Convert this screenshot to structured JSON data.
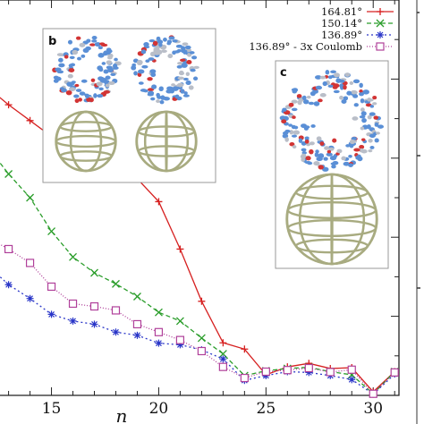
{
  "chart_data": {
    "type": "line",
    "xlabel": "n",
    "ylabel": "",
    "xlim": [
      12.6,
      31.2
    ],
    "ylim": [
      0,
      1
    ],
    "x_ticks": [
      15,
      20,
      25,
      30
    ],
    "grid": false,
    "legend_position": "top-right",
    "series": [
      {
        "name": "164.81°",
        "color": "#d62020",
        "marker": "plus",
        "dash": "",
        "x": [
          12,
          13,
          14,
          15,
          16,
          17,
          18,
          19,
          20,
          21,
          22,
          23,
          24,
          25,
          26,
          27,
          28,
          29,
          30,
          31
        ],
        "y": [
          0.78,
          0.735,
          0.695,
          0.655,
          0.608,
          0.59,
          0.575,
          0.548,
          0.49,
          0.37,
          0.238,
          0.133,
          0.117,
          0.052,
          0.072,
          0.081,
          0.068,
          0.07,
          0.009,
          0.06
        ]
      },
      {
        "name": "150.14°",
        "color": "#2a9d2a",
        "marker": "x",
        "dash": "5,3",
        "x": [
          12,
          13,
          14,
          15,
          16,
          17,
          18,
          19,
          20,
          21,
          22,
          23,
          24,
          25,
          26,
          27,
          28,
          29,
          30,
          31
        ],
        "y": [
          0.63,
          0.56,
          0.5,
          0.415,
          0.35,
          0.31,
          0.282,
          0.25,
          0.21,
          0.188,
          0.145,
          0.105,
          0.05,
          0.062,
          0.068,
          0.071,
          0.06,
          0.052,
          0.004,
          0.06
        ]
      },
      {
        "name": "136.89°",
        "color": "#2a36c8",
        "marker": "star",
        "dash": "2,3",
        "x": [
          12,
          13,
          14,
          15,
          16,
          17,
          18,
          19,
          20,
          21,
          22,
          23,
          24,
          25,
          26,
          27,
          28,
          29,
          30,
          31
        ],
        "y": [
          0.33,
          0.28,
          0.245,
          0.205,
          0.188,
          0.18,
          0.16,
          0.152,
          0.132,
          0.128,
          0.115,
          0.092,
          0.038,
          0.05,
          0.06,
          0.058,
          0.05,
          0.04,
          0.003,
          0.054
        ]
      },
      {
        "name": "136.89° - 3x Coulomb",
        "color": "#b0409a",
        "marker": "square",
        "dash": "1,2",
        "x": [
          12,
          13,
          14,
          15,
          16,
          17,
          18,
          19,
          20,
          21,
          22,
          23,
          24,
          25,
          26,
          27,
          28,
          29,
          30,
          31
        ],
        "y": [
          0.4,
          0.37,
          0.335,
          0.275,
          0.232,
          0.225,
          0.215,
          0.18,
          0.16,
          0.14,
          0.112,
          0.072,
          0.044,
          0.06,
          0.064,
          0.069,
          0.059,
          0.065,
          0.004,
          0.058
        ]
      }
    ],
    "insets": [
      {
        "label": "b"
      },
      {
        "label": "c"
      }
    ]
  },
  "colors": {
    "frame": "#222222",
    "lattice": "#a8ab80",
    "atom_blue": "#5a8fd6",
    "atom_red": "#d23434",
    "atom_grey": "#b9bec8"
  }
}
